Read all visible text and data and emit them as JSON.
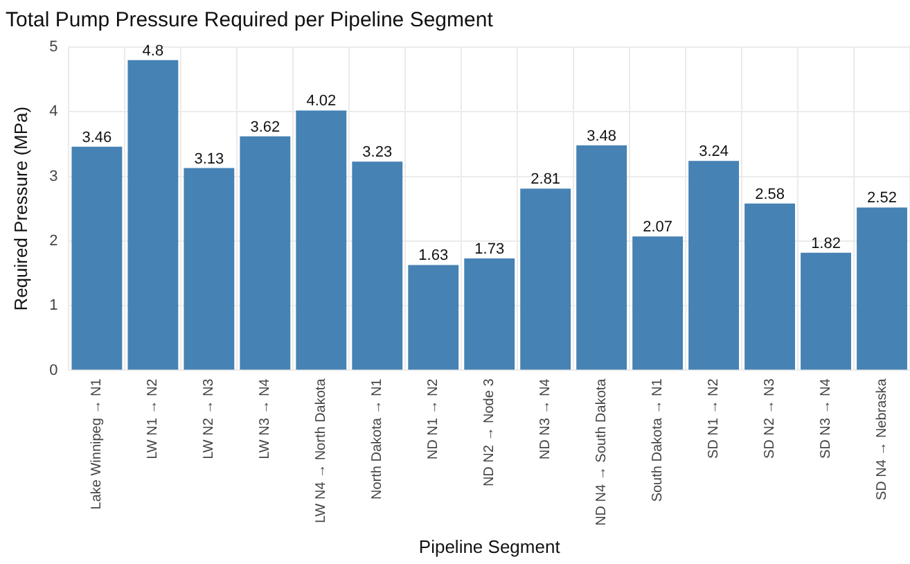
{
  "chart_data": {
    "type": "bar",
    "title": "Total Pump Pressure Required per Pipeline Segment",
    "xlabel": "Pipeline Segment",
    "ylabel": "Required Pressure (MPa)",
    "categories": [
      "Lake Winnipeg → N1",
      "LW N1 → N2",
      "LW N2 → N3",
      "LW N3 → N4",
      "LW N4 → North Dakota",
      "North Dakota → N1",
      "ND N1 → N2",
      "ND N2 → Node 3",
      "ND N3 → N4",
      "ND N4 → South Dakota",
      "South Dakota → N1",
      "SD N1 → N2",
      "SD N2 → N3",
      "SD N3 → N4",
      "SD N4 → Nebraska"
    ],
    "values": [
      3.46,
      4.8,
      3.13,
      3.62,
      4.02,
      3.23,
      1.63,
      1.73,
      2.81,
      3.48,
      2.07,
      3.24,
      2.58,
      1.82,
      2.52
    ],
    "color": "#4682b4",
    "ylim": [
      0,
      5
    ],
    "yticks": [
      0,
      1,
      2,
      3,
      4,
      5
    ],
    "grid": true,
    "data_labels": true,
    "legend": false
  }
}
